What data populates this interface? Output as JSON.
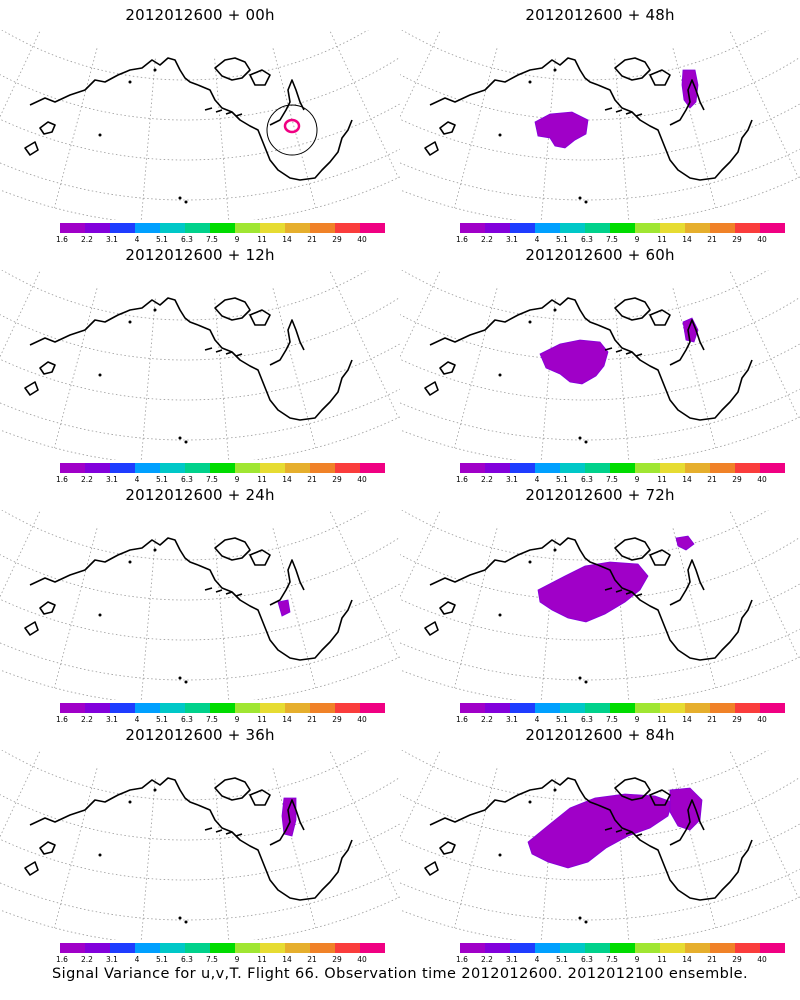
{
  "panels": [
    {
      "title": "2012012600  + 00h",
      "blobs": [],
      "contours": [
        {
          "type": "circle"
        },
        {
          "type": "red-ring"
        }
      ]
    },
    {
      "title": "2012012600  + 48h",
      "blobs": [
        "pacific-small",
        "hudson"
      ],
      "contours": []
    },
    {
      "title": "2012012600  + 12h",
      "blobs": [],
      "contours": []
    },
    {
      "title": "2012012600  + 60h",
      "blobs": [
        "pacific-mid",
        "hudson-small"
      ],
      "contours": []
    },
    {
      "title": "2012012600  + 24h",
      "blobs": [
        "lakes-dot"
      ],
      "contours": []
    },
    {
      "title": "2012012600  + 72h",
      "blobs": [
        "pacific-large",
        "hudson-dot"
      ],
      "contours": []
    },
    {
      "title": "2012012600  + 36h",
      "blobs": [
        "lakes-strip"
      ],
      "contours": []
    },
    {
      "title": "2012012600  + 84h",
      "blobs": [
        "pacific-xl",
        "hudson-large"
      ],
      "contours": []
    }
  ],
  "colorbar": {
    "colors": [
      "#a000c8",
      "#8200dc",
      "#1e3cff",
      "#00a0ff",
      "#00c8c8",
      "#00d28c",
      "#00dc00",
      "#a0e632",
      "#e6dc32",
      "#e6af2d",
      "#f08228",
      "#fa3c3c",
      "#f00082"
    ],
    "labels": [
      "1.6",
      "2.2",
      "3.1",
      "4",
      "5.1",
      "6.3",
      "7.5",
      "9",
      "11",
      "14",
      "21",
      "29",
      "40"
    ]
  },
  "footer": "Signal Variance for u,v,T. Flight 66. Observation time 2012012600. 2012012100 ensemble."
}
